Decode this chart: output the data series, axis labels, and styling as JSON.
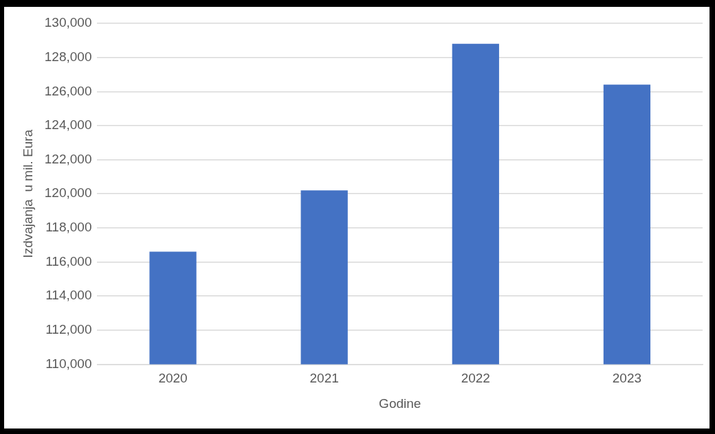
{
  "chart_data": {
    "type": "bar",
    "xlabel": "Godine",
    "ylabel": "Izdvajanja  u mil. Eura",
    "categories": [
      "2020",
      "2021",
      "2022",
      "2023"
    ],
    "values": [
      116600,
      120200,
      128800,
      126400
    ],
    "color": "#4472c4",
    "ylim": [
      110000,
      130000
    ],
    "yticks": [
      {
        "value": 110000,
        "label": "110,000"
      },
      {
        "value": 112000,
        "label": "112,000"
      },
      {
        "value": 114000,
        "label": "114,000"
      },
      {
        "value": 116000,
        "label": "116,000"
      },
      {
        "value": 118000,
        "label": "118,000"
      },
      {
        "value": 120000,
        "label": "120,000"
      },
      {
        "value": 122000,
        "label": "122,000"
      },
      {
        "value": 124000,
        "label": "124,000"
      },
      {
        "value": 126000,
        "label": "126,000"
      },
      {
        "value": 128000,
        "label": "128,000"
      },
      {
        "value": 130000,
        "label": "130,000"
      }
    ],
    "grid": "y",
    "legend": false
  }
}
